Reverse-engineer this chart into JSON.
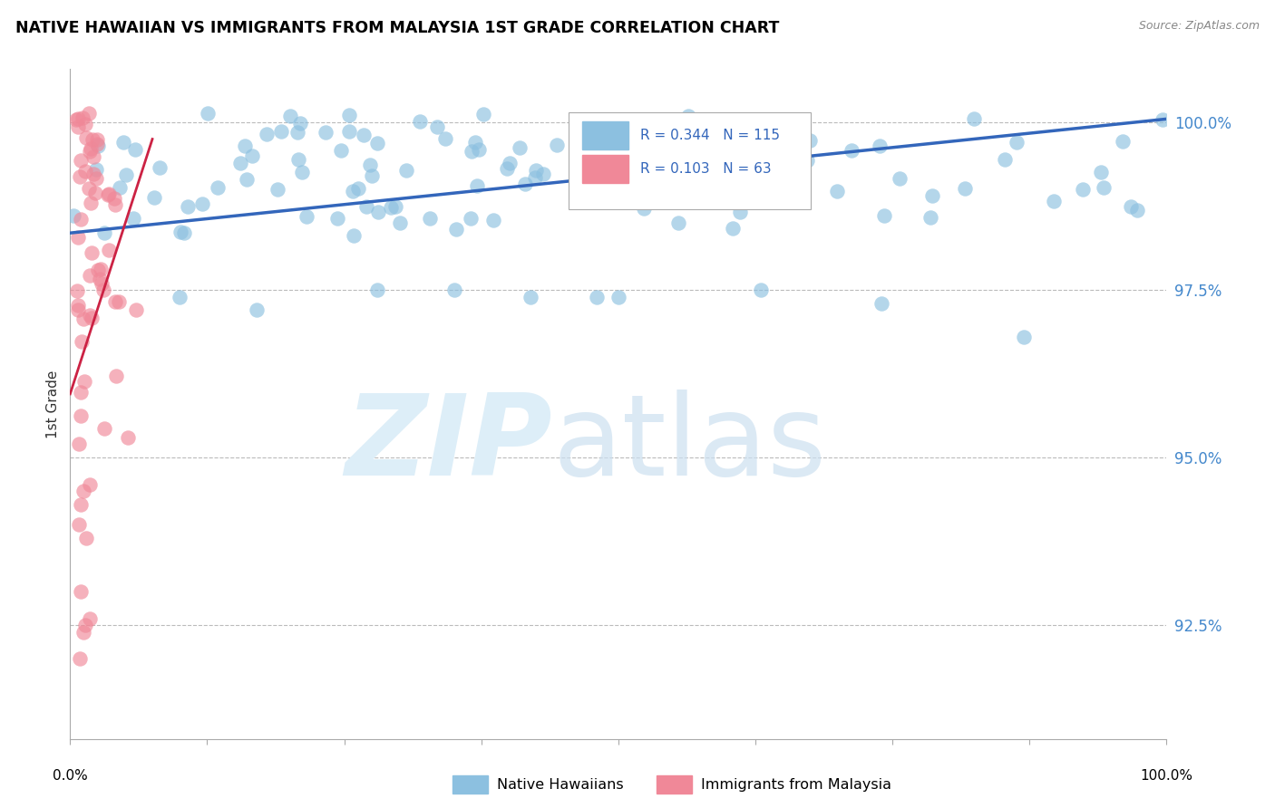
{
  "title": "NATIVE HAWAIIAN VS IMMIGRANTS FROM MALAYSIA 1ST GRADE CORRELATION CHART",
  "source": "Source: ZipAtlas.com",
  "ylabel": "1st Grade",
  "ytick_labels": [
    "100.0%",
    "97.5%",
    "95.0%",
    "92.5%"
  ],
  "ytick_values": [
    1.0,
    0.975,
    0.95,
    0.925
  ],
  "xlim": [
    0.0,
    1.0
  ],
  "ylim": [
    0.908,
    1.008
  ],
  "legend_blue_label": "Native Hawaiians",
  "legend_pink_label": "Immigrants from Malaysia",
  "blue_R": "0.344",
  "blue_N": "115",
  "pink_R": "0.103",
  "pink_N": "63",
  "blue_color": "#8cc0e0",
  "pink_color": "#f08898",
  "blue_line_color": "#3366bb",
  "pink_line_color": "#cc2244",
  "blue_trend_x": [
    0.0,
    1.0
  ],
  "blue_trend_y": [
    0.9835,
    1.0005
  ],
  "pink_trend_x": [
    0.0,
    0.075
  ],
  "pink_trend_y": [
    0.9595,
    0.9975
  ]
}
